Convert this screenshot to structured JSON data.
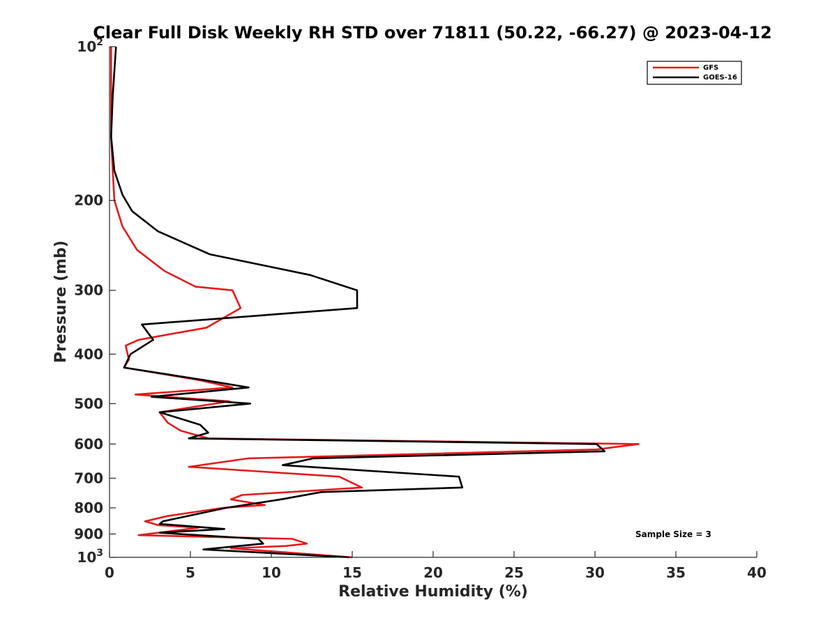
{
  "chart_data": {
    "type": "line",
    "title": "Clear Full Disk Weekly RH STD over 71811 (50.22, -66.27) @ 2023-04-12",
    "xlabel": "Relative Humidity (%)",
    "ylabel": "Pressure (mb)",
    "xlim": [
      0,
      40
    ],
    "ylim": [
      100,
      1000
    ],
    "yscale": "log",
    "yreversed": true,
    "grid": false,
    "legend_position": "top-right",
    "x_ticks": [
      0,
      5,
      10,
      15,
      20,
      25,
      30,
      35,
      40
    ],
    "x_tick_labels": [
      "0",
      "5",
      "10",
      "15",
      "20",
      "25",
      "30",
      "35",
      "40"
    ],
    "y_ticks": [
      100,
      200,
      300,
      400,
      500,
      600,
      700,
      800,
      900,
      1000
    ],
    "y_tick_labels": [
      {
        "text": "10",
        "sup": "2"
      },
      {
        "text": "200",
        "sup": ""
      },
      {
        "text": "300",
        "sup": ""
      },
      {
        "text": "400",
        "sup": ""
      },
      {
        "text": "500",
        "sup": ""
      },
      {
        "text": "600",
        "sup": ""
      },
      {
        "text": "700",
        "sup": ""
      },
      {
        "text": "800",
        "sup": ""
      },
      {
        "text": "900",
        "sup": ""
      },
      {
        "text": "10",
        "sup": "3"
      }
    ],
    "annotation": "Sample Size = 3",
    "series": [
      {
        "name": "GFS",
        "color": "#e41a1c",
        "points": [
          [
            0.1,
            100
          ],
          [
            0.1,
            125
          ],
          [
            0.1,
            150
          ],
          [
            0.2,
            175
          ],
          [
            0.3,
            200
          ],
          [
            0.8,
            225
          ],
          [
            1.7,
            250
          ],
          [
            3.4,
            275
          ],
          [
            5.3,
            295
          ],
          [
            7.6,
            300
          ],
          [
            8.1,
            325
          ],
          [
            6.0,
            355
          ],
          [
            1.8,
            375
          ],
          [
            1.0,
            385
          ],
          [
            1.2,
            410
          ],
          [
            0.9,
            425
          ],
          [
            5.6,
            450
          ],
          [
            7.6,
            465
          ],
          [
            1.6,
            480
          ],
          [
            7.4,
            495
          ],
          [
            3.1,
            520
          ],
          [
            3.6,
            545
          ],
          [
            4.4,
            565
          ],
          [
            5.7,
            580
          ],
          [
            6.1,
            585
          ],
          [
            32.7,
            600
          ],
          [
            30.1,
            615
          ],
          [
            8.6,
            640
          ],
          [
            4.9,
            665
          ],
          [
            14.2,
            695
          ],
          [
            15.6,
            730
          ],
          [
            8.2,
            755
          ],
          [
            7.5,
            770
          ],
          [
            9.6,
            790
          ],
          [
            7.0,
            800
          ],
          [
            3.6,
            830
          ],
          [
            2.2,
            850
          ],
          [
            3.0,
            865
          ],
          [
            5.5,
            875
          ],
          [
            1.8,
            905
          ],
          [
            11.3,
            920
          ],
          [
            12.2,
            940
          ],
          [
            10.9,
            950
          ],
          [
            7.5,
            960
          ],
          [
            15.0,
            1000
          ]
        ]
      },
      {
        "name": "GOES-16",
        "color": "#000000",
        "points": [
          [
            0.4,
            100
          ],
          [
            0.2,
            125
          ],
          [
            0.1,
            150
          ],
          [
            0.3,
            175
          ],
          [
            0.8,
            195
          ],
          [
            1.4,
            210
          ],
          [
            3.0,
            230
          ],
          [
            6.2,
            255
          ],
          [
            12.4,
            280
          ],
          [
            15.3,
            300
          ],
          [
            15.3,
            325
          ],
          [
            2.0,
            350
          ],
          [
            2.7,
            375
          ],
          [
            1.3,
            400
          ],
          [
            0.9,
            425
          ],
          [
            5.9,
            450
          ],
          [
            8.6,
            465
          ],
          [
            2.6,
            485
          ],
          [
            8.7,
            500
          ],
          [
            3.1,
            520
          ],
          [
            5.6,
            550
          ],
          [
            6.1,
            570
          ],
          [
            4.9,
            585
          ],
          [
            30.1,
            600
          ],
          [
            30.6,
            620
          ],
          [
            12.6,
            640
          ],
          [
            10.7,
            660
          ],
          [
            21.6,
            695
          ],
          [
            21.8,
            730
          ],
          [
            13.1,
            745
          ],
          [
            10.6,
            770
          ],
          [
            7.2,
            800
          ],
          [
            3.3,
            850
          ],
          [
            3.1,
            860
          ],
          [
            7.1,
            880
          ],
          [
            3.1,
            895
          ],
          [
            9.2,
            920
          ],
          [
            9.5,
            940
          ],
          [
            5.8,
            965
          ],
          [
            14.8,
            1000
          ]
        ]
      }
    ]
  }
}
